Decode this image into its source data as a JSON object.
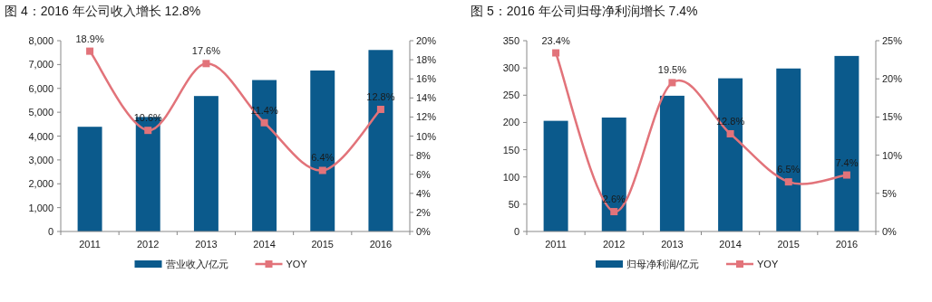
{
  "chart_data": [
    {
      "type": "bar",
      "title": "图 4：2016 年公司收入增长 12.8%",
      "categories": [
        "2011",
        "2012",
        "2013",
        "2014",
        "2015",
        "2016"
      ],
      "series": [
        {
          "name": "营业收入/亿元",
          "type": "bar",
          "color": "#0b5a8c",
          "values": [
            4390,
            4800,
            5680,
            6350,
            6750,
            7610
          ]
        },
        {
          "name": "YOY",
          "type": "line",
          "axis": "y2",
          "color": "#e2737a",
          "values": [
            18.9,
            10.6,
            17.6,
            11.4,
            6.4,
            12.8
          ],
          "value_labels": [
            "18.9%",
            "10.6%",
            "17.6%",
            "11.4%",
            "6.4%",
            "12.8%"
          ]
        }
      ],
      "ylim": [
        0,
        8000
      ],
      "yticks": [
        0,
        {
          "value": 1000,
          "label": "1,000"
        },
        {
          "value": 2000,
          "label": "2,000"
        },
        {
          "value": 3000,
          "label": "3,000"
        },
        {
          "value": 4000,
          "label": "4,000"
        },
        {
          "value": 5000,
          "label": "5,000"
        },
        {
          "value": 6000,
          "label": "6,000"
        },
        {
          "value": 7000,
          "label": "7,000"
        },
        {
          "value": 8000,
          "label": "8,000"
        }
      ],
      "y2lim": [
        0,
        20
      ],
      "y2ticks": [
        {
          "value": 0,
          "label": "0%"
        },
        {
          "value": 2,
          "label": "2%"
        },
        {
          "value": 4,
          "label": "4%"
        },
        {
          "value": 6,
          "label": "6%"
        },
        {
          "value": 8,
          "label": "8%"
        },
        {
          "value": 10,
          "label": "10%"
        },
        {
          "value": 12,
          "label": "12%"
        },
        {
          "value": 14,
          "label": "14%"
        },
        {
          "value": 16,
          "label": "16%"
        },
        {
          "value": 18,
          "label": "18%"
        },
        {
          "value": 20,
          "label": "20%"
        }
      ],
      "marker": "square",
      "legend": "bottom"
    },
    {
      "type": "bar",
      "title": "图 5：2016 年公司归母净利润增长 7.4%",
      "categories": [
        "2011",
        "2012",
        "2013",
        "2014",
        "2015",
        "2016"
      ],
      "series": [
        {
          "name": "归母净利润/亿元",
          "type": "bar",
          "color": "#0b5a8c",
          "values": [
            203,
            209,
            249,
            281,
            299,
            322
          ]
        },
        {
          "name": "YOY",
          "type": "line",
          "axis": "y2",
          "color": "#e2737a",
          "values": [
            23.4,
            2.6,
            19.5,
            12.8,
            6.5,
            7.4
          ],
          "value_labels": [
            "23.4%",
            "2.6%",
            "19.5%",
            "12.8%",
            "6.5%",
            "7.4%"
          ]
        }
      ],
      "ylim": [
        0,
        350
      ],
      "yticks": [
        0,
        50,
        100,
        150,
        200,
        250,
        300,
        350
      ],
      "y2lim": [
        0,
        25
      ],
      "y2ticks": [
        {
          "value": 0,
          "label": "0%"
        },
        {
          "value": 5,
          "label": "5%"
        },
        {
          "value": 10,
          "label": "10%"
        },
        {
          "value": 15,
          "label": "15%"
        },
        {
          "value": 20,
          "label": "20%"
        },
        {
          "value": 25,
          "label": "25%"
        }
      ],
      "marker": "square",
      "legend": "bottom"
    }
  ]
}
